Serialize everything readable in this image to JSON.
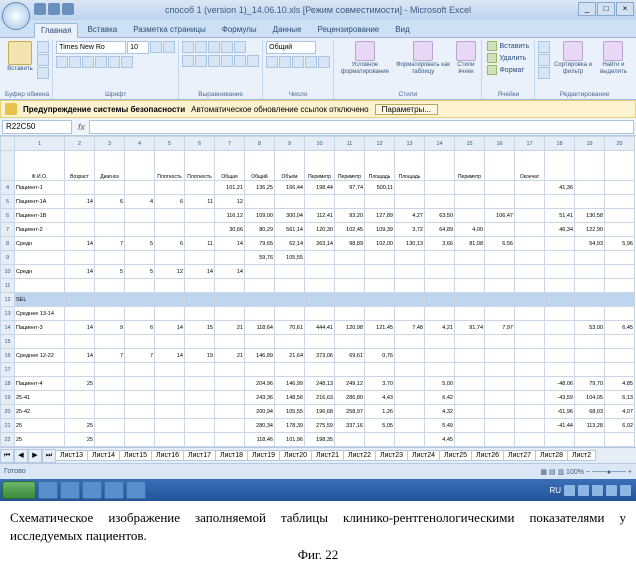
{
  "window": {
    "title": "способ 1 (version 1)_14.06.10.xls  [Режим совместимости] - Microsoft Excel"
  },
  "tabs": [
    "Главная",
    "Вставка",
    "Разметка страницы",
    "Формулы",
    "Данные",
    "Рецензирование",
    "Вид"
  ],
  "active_tab": 0,
  "ribbon": {
    "paste_label": "Вставить",
    "clipboard_group": "Буфер обмена",
    "font_name": "Times New Ro",
    "font_size": "10",
    "font_group": "Шрифт",
    "align_group": "Выравнивание",
    "number_format": "Общий",
    "number_group": "Число",
    "cond_fmt": "Условное форматирование",
    "fmt_table": "Форматировать как таблицу",
    "cell_styles": "Стили ячеек",
    "styles_group": "Стили",
    "insert": "Вставить",
    "delete": "Удалить",
    "format": "Формат",
    "cells_group": "Ячейки",
    "sort": "Сортировка и фильтр",
    "find": "Найти и выделить",
    "edit_group": "Редактирование"
  },
  "security": {
    "label": "Предупреждение системы безопасности",
    "msg": "Автоматическое обновление ссылок отключено",
    "btn": "Параметры..."
  },
  "namebox": "R22C50",
  "headers": [
    "Ф.И.О.",
    "Возраст",
    "Диагноз",
    "",
    "Плотность",
    "Плотность",
    "Общая",
    "Общий",
    "Объём",
    "Периметр",
    "Периметр",
    "Площадь",
    "Площадь",
    "",
    "Периметр",
    "",
    "Окончат"
  ],
  "rows": [
    {
      "name": "Пациент-1",
      "v": [
        "",
        "",
        "",
        "",
        "",
        "101,21",
        "136,25",
        "166,44",
        "198,44",
        "97,74",
        "500,11",
        "",
        "",
        "",
        "",
        "",
        "41,36"
      ]
    },
    {
      "name": "Пациент-1A",
      "v": [
        "14",
        "6",
        "4",
        "6",
        "11",
        "12",
        "",
        "",
        "",
        "",
        "",
        "",
        "",
        "",
        "",
        "",
        ""
      ]
    },
    {
      "name": "Пациент-1B",
      "v": [
        "",
        "",
        "",
        "",
        "",
        "116,12",
        "109,00",
        "300,04",
        "112,41",
        "93,20",
        "127,89",
        "4,27",
        "63,50",
        "",
        "106,47",
        "",
        "51,41",
        "130,58"
      ]
    },
    {
      "name": "Пациент-2",
      "v": [
        "",
        "",
        "",
        "",
        "",
        "30,66",
        "80,29",
        "561,14",
        "120,30",
        "102,45",
        "109,39",
        "3,72",
        "64,89",
        "4,00",
        "",
        "",
        "46,34",
        "122,90"
      ]
    },
    {
      "name": "Средн",
      "v": [
        "14",
        "7",
        "5",
        "6",
        "11",
        "14",
        "79,65",
        "62,14",
        "363,14",
        "98,89",
        "102,00",
        "130,13",
        "3,66",
        "81,08",
        "6,56",
        "",
        "",
        "54,93",
        "5,96"
      ]
    },
    {
      "name": "",
      "v": [
        "",
        "",
        "",
        "",
        "",
        "",
        "59,76",
        "105,55",
        "",
        "",
        "",
        "",
        "",
        "",
        "",
        "",
        "",
        ""
      ]
    },
    {
      "name": "Средн",
      "v": [
        "14",
        "5",
        "5",
        "12",
        "14",
        "14",
        "",
        "",
        "",
        "",
        "",
        "",
        "",
        "",
        "",
        "",
        "",
        ""
      ]
    },
    {
      "name": "",
      "v": [
        "",
        "",
        "",
        "",
        "",
        "",
        "",
        "",
        "",
        "",
        "",
        "",
        "",
        "",
        "",
        "",
        "",
        ""
      ]
    },
    {
      "name": "SEL",
      "v": [
        "",
        "",
        "",
        "",
        "",
        "",
        "",
        "",
        "",
        "",
        "",
        "",
        "",
        "",
        "",
        "",
        "",
        ""
      ]
    },
    {
      "name": "Среднее 13-14",
      "v": [
        "",
        "",
        "",
        "",
        "",
        "",
        "",
        "",
        "",
        "",
        "",
        "",
        "",
        "",
        "",
        "",
        "",
        ""
      ]
    },
    {
      "name": "Пациент-3",
      "v": [
        "14",
        "9",
        "6",
        "14",
        "15",
        "21",
        "118,64",
        "70,61",
        "444,41",
        "120,98",
        "121,45",
        "7,48",
        "4,21",
        "91,74",
        "7,97",
        "",
        "",
        "53,00",
        "6,45"
      ]
    },
    {
      "name": "",
      "v": [
        "",
        "",
        "",
        "",
        "",
        "",
        "",
        "",
        "",
        "",
        "",
        "",
        "",
        "",
        "",
        "",
        "",
        ""
      ]
    },
    {
      "name": "Среднее 12-22",
      "v": [
        "14",
        "7",
        "7",
        "14",
        "19",
        "21",
        "146,89",
        "21,64",
        "373,06",
        "69,61",
        "0,76",
        "",
        "",
        "",
        "",
        "",
        "",
        ""
      ]
    },
    {
      "name": "",
      "v": [
        "",
        "",
        "",
        "",
        "",
        "",
        "",
        "",
        "",
        "",
        "",
        "",
        "",
        "",
        "",
        "",
        "",
        ""
      ]
    },
    {
      "name": "Пациент-4",
      "v": [
        "25",
        "",
        "",
        "",
        "",
        "",
        "204,96",
        "146,99",
        "248,13",
        "249,12",
        "3,70",
        "",
        "5,00",
        "",
        "",
        "",
        "-48.06",
        "79,70",
        "4,85"
      ]
    },
    {
      "name": "25-41",
      "v": [
        "",
        "",
        "",
        "",
        "",
        "",
        "243,36",
        "148,56",
        "216,63",
        "286,80",
        "4,43",
        "",
        "6,42",
        "",
        "",
        "",
        "-43,59",
        "104,05",
        "6,13"
      ]
    },
    {
      "name": "25-42",
      "v": [
        "",
        "",
        "",
        "",
        "",
        "",
        "200,94",
        "105,55",
        "196,68",
        "258,97",
        "1,26",
        "",
        "4,32",
        "",
        "",
        "",
        "-61,96",
        "68,03",
        "4,07"
      ]
    },
    {
      "name": "25",
      "v": [
        "25",
        "",
        "",
        "",
        "",
        "",
        "280,34",
        "178,39",
        "275,59",
        "337,16",
        "5,05",
        "",
        "5,49",
        "",
        "",
        "",
        "-41,44",
        "113,28",
        "6,02"
      ]
    },
    {
      "name": "25",
      "v": [
        "25",
        "",
        "",
        "",
        "",
        "",
        "118,46",
        "101,96",
        "198,35",
        "",
        "",
        "",
        "4,45",
        "",
        "",
        "",
        "",
        ""
      ]
    }
  ],
  "selected_row": 8,
  "col_letters": [
    "A",
    "B",
    "C",
    "D",
    "E",
    "F",
    "G",
    "H",
    "I",
    "J",
    "K",
    "L",
    "M",
    "N",
    "O",
    "P",
    "Q",
    "R",
    "S",
    "T",
    "U",
    "V",
    "W",
    "X",
    "Y",
    "Z"
  ],
  "sheets": [
    "Лист13",
    "Лист14",
    "Лист15",
    "Лист16",
    "Лист17",
    "Лист18",
    "Лист19",
    "Лист20",
    "Лист21",
    "Лист22",
    "Лист23",
    "Лист24",
    "Лист25",
    "Лист26",
    "Лист27",
    "Лист28",
    "Лист2"
  ],
  "status": "Готово",
  "zoom": "100%",
  "lang": "RU",
  "clock": "",
  "caption": "Схематическое изображение заполняемой таблицы клинико-рентгенологическими показателями у исследуемых пациентов.",
  "figure": "Фиг. 22",
  "colors": {
    "ribbon_bg": "#eaf1fb",
    "accent": "#3b5a82",
    "security_bg": "#fdf2cf",
    "selection": "#bfd4ee",
    "taskbar": "#245399"
  }
}
